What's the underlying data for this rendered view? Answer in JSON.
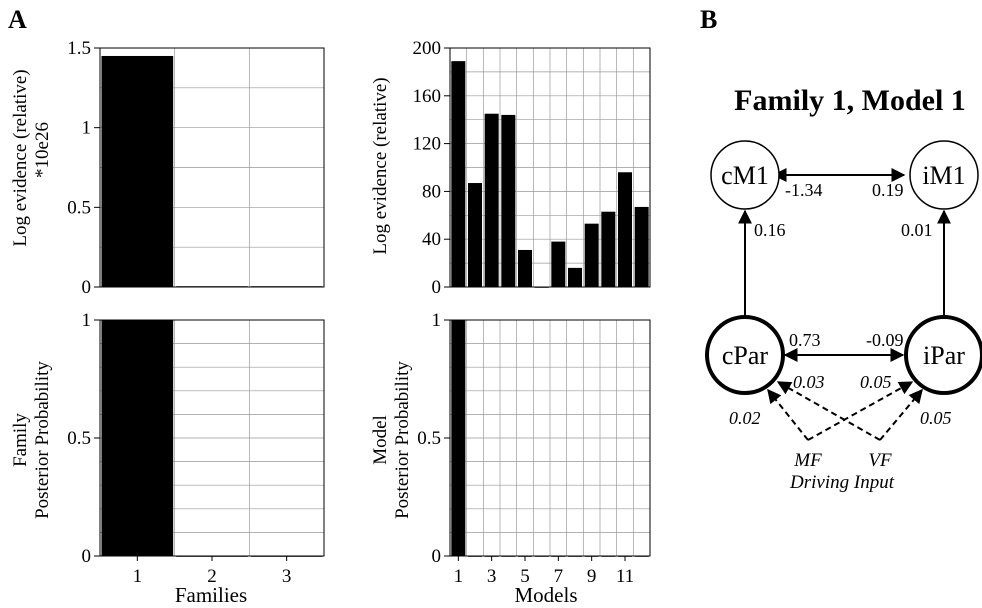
{
  "panel_labels": {
    "a": "A",
    "b": "B"
  },
  "chart_data": [
    {
      "type": "bar",
      "id": "families-log-evidence",
      "categories": [
        "1",
        "2",
        "3"
      ],
      "values": [
        1.45,
        0.005,
        0.005
      ],
      "ylabel": "Log evidence (relative)",
      "ylabel2": "*10e26",
      "ylim": [
        0,
        1.5
      ],
      "yticks": [
        0,
        0.5,
        1,
        1.5
      ],
      "ytick_labels": [
        "0",
        "0.5",
        "1",
        "1.5"
      ],
      "grid": true
    },
    {
      "type": "bar",
      "id": "models-log-evidence",
      "categories": [
        "1",
        "2",
        "3",
        "4",
        "5",
        "6",
        "7",
        "8",
        "9",
        "10",
        "11",
        "12"
      ],
      "values": [
        189,
        87,
        145,
        144,
        31,
        0,
        38,
        16,
        53,
        63,
        96,
        67
      ],
      "ylabel": "Log evidence (relative)",
      "ylim": [
        0,
        200
      ],
      "yticks": [
        0,
        40,
        80,
        120,
        160,
        200
      ],
      "ytick_labels": [
        "0",
        "40",
        "80",
        "120",
        "160",
        "200"
      ],
      "grid": true
    },
    {
      "type": "bar",
      "id": "families-posterior",
      "categories": [
        "1",
        "2",
        "3"
      ],
      "values": [
        1.0,
        0.0,
        0.0
      ],
      "ylabel": "Family",
      "ylabel2": "Posterior Probability",
      "xlabel": "Families",
      "xtick_labels": [
        "1",
        "2",
        "3"
      ],
      "ylim": [
        0,
        1
      ],
      "yticks": [
        0,
        0.5,
        1
      ],
      "ytick_labels": [
        "0",
        "0.5",
        "1"
      ],
      "grid": true
    },
    {
      "type": "bar",
      "id": "models-posterior",
      "categories": [
        "1",
        "2",
        "3",
        "4",
        "5",
        "6",
        "7",
        "8",
        "9",
        "10",
        "11",
        "12"
      ],
      "values": [
        1.0,
        0,
        0,
        0,
        0,
        0,
        0,
        0,
        0,
        0,
        0,
        0
      ],
      "ylabel": "Model",
      "ylabel2": "Posterior Probability",
      "xlabel": "Models",
      "xtick_labels": [
        "1",
        "3",
        "5",
        "7",
        "9",
        "11"
      ],
      "ylim": [
        0,
        1
      ],
      "yticks": [
        0,
        0.5,
        1
      ],
      "ytick_labels": [
        "0",
        "0.5",
        "1"
      ],
      "grid": true
    }
  ],
  "diagram": {
    "title": "Family 1, Model 1",
    "nodes": {
      "cM1": "cM1",
      "iM1": "iM1",
      "cPar": "cPar",
      "iPar": "iPar"
    },
    "edge_labels": {
      "cM1_iM1_left": "-1.34",
      "cM1_iM1_right": "0.19",
      "cPar_cM1": "0.16",
      "iPar_iM1": "0.01",
      "cPar_iPar_left": "0.73",
      "cPar_iPar_right": "-0.09",
      "mf_cPar": "0.02",
      "vf_cPar": "0.03",
      "mf_iPar": "0.05",
      "vf_iPar": "0.05"
    },
    "inputs": {
      "mf": "MF",
      "vf": "VF",
      "driving": "Driving Input"
    }
  }
}
